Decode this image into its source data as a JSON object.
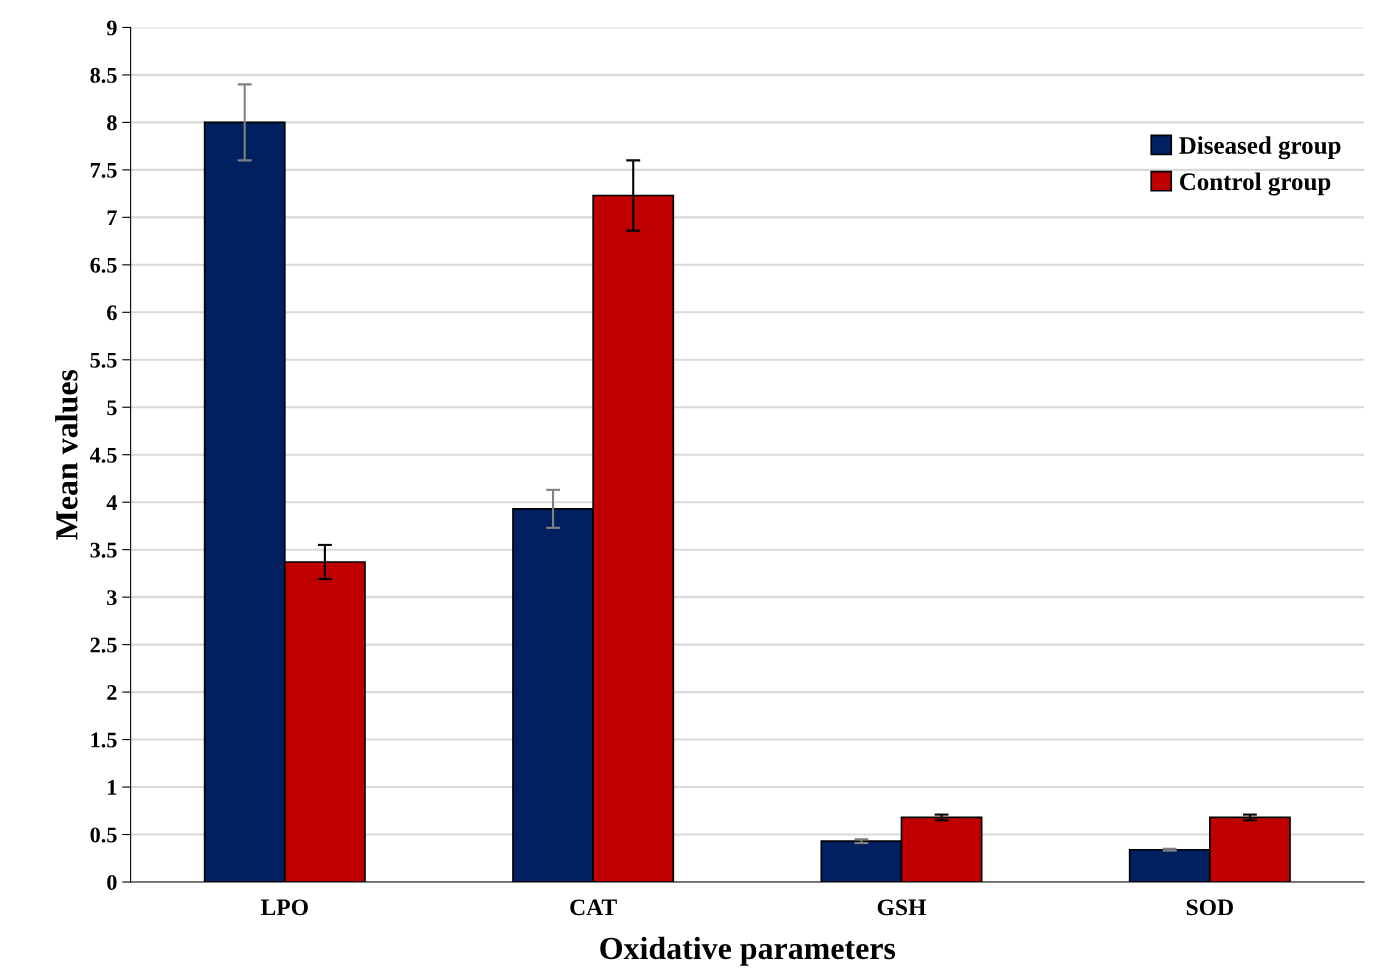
{
  "chart_data": {
    "type": "bar",
    "xlabel": "Oxidative parameters",
    "ylabel": "Mean values",
    "categories": [
      "LPO",
      "CAT",
      "GSH",
      "SOD"
    ],
    "series": [
      {
        "name": "Diseased group",
        "color": "#002060",
        "values": [
          8.0,
          3.93,
          0.43,
          0.34
        ],
        "errors": [
          0.4,
          0.2,
          0.02,
          0.01
        ]
      },
      {
        "name": "Control group",
        "color": "#c00000",
        "values": [
          3.37,
          7.23,
          0.68,
          0.68
        ],
        "errors": [
          0.18,
          0.37,
          0.03,
          0.03
        ]
      }
    ],
    "ylim": [
      0,
      9
    ],
    "yticks": [
      0,
      0.5,
      1,
      1.5,
      2,
      2.5,
      3,
      3.5,
      4,
      4.5,
      5,
      5.5,
      6,
      6.5,
      7,
      7.5,
      8,
      8.5,
      9
    ],
    "grid": "y",
    "legend": "top right"
  }
}
